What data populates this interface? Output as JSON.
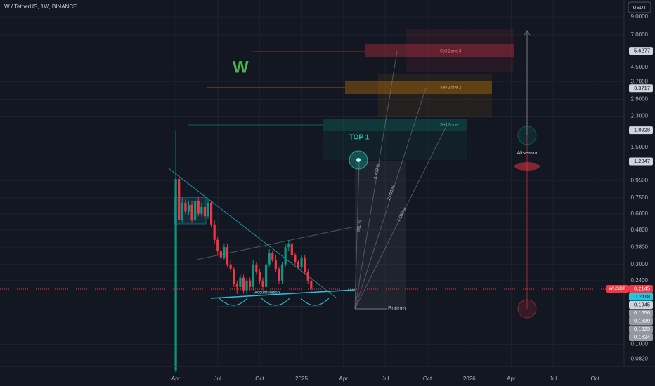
{
  "chart_data": {
    "type": "candlestick",
    "title": "W / TetherUS, 1W, BINANCE",
    "currency": "USDT",
    "log_scale": true,
    "up_color": "#089981",
    "down_color": "#f23645",
    "x": [
      0,
      1,
      2,
      3,
      4,
      5,
      6,
      7,
      8,
      9,
      10,
      11,
      12,
      13,
      14,
      15,
      16,
      17,
      18,
      19,
      20,
      21,
      22,
      23,
      24,
      25,
      26,
      27,
      28,
      29,
      30,
      31,
      32,
      33,
      34,
      35,
      36,
      37,
      38,
      39,
      40,
      41,
      42
    ],
    "open": [
      0.07,
      0.97,
      0.55,
      0.7,
      0.62,
      0.68,
      0.55,
      0.72,
      0.6,
      0.66,
      0.58,
      0.7,
      0.52,
      0.42,
      0.36,
      0.33,
      0.38,
      0.3,
      0.28,
      0.23,
      0.22,
      0.25,
      0.21,
      0.24,
      0.22,
      0.3,
      0.27,
      0.24,
      0.22,
      0.3,
      0.35,
      0.32,
      0.28,
      0.24,
      0.3,
      0.38,
      0.4,
      0.34,
      0.31,
      0.29,
      0.33,
      0.27,
      0.24
    ],
    "high": [
      1.87,
      1.0,
      0.75,
      0.74,
      0.72,
      0.72,
      0.76,
      0.76,
      0.7,
      0.7,
      0.74,
      0.72,
      0.55,
      0.44,
      0.38,
      0.4,
      0.4,
      0.32,
      0.29,
      0.24,
      0.26,
      0.26,
      0.25,
      0.25,
      0.32,
      0.31,
      0.28,
      0.25,
      0.31,
      0.37,
      0.36,
      0.34,
      0.29,
      0.31,
      0.4,
      0.42,
      0.41,
      0.35,
      0.32,
      0.34,
      0.34,
      0.28,
      0.25
    ],
    "low": [
      0.068,
      0.52,
      0.53,
      0.6,
      0.59,
      0.53,
      0.53,
      0.58,
      0.58,
      0.56,
      0.56,
      0.5,
      0.4,
      0.34,
      0.31,
      0.32,
      0.29,
      0.27,
      0.22,
      0.2,
      0.21,
      0.2,
      0.2,
      0.21,
      0.21,
      0.26,
      0.23,
      0.21,
      0.21,
      0.29,
      0.31,
      0.27,
      0.23,
      0.23,
      0.29,
      0.36,
      0.33,
      0.3,
      0.28,
      0.28,
      0.26,
      0.23,
      0.205
    ],
    "close": [
      0.97,
      0.55,
      0.7,
      0.62,
      0.68,
      0.55,
      0.72,
      0.6,
      0.66,
      0.58,
      0.7,
      0.52,
      0.42,
      0.36,
      0.33,
      0.38,
      0.3,
      0.28,
      0.23,
      0.22,
      0.25,
      0.21,
      0.24,
      0.22,
      0.3,
      0.27,
      0.24,
      0.22,
      0.3,
      0.35,
      0.32,
      0.28,
      0.24,
      0.3,
      0.38,
      0.4,
      0.34,
      0.31,
      0.29,
      0.33,
      0.27,
      0.24,
      0.2145
    ],
    "xlim": [
      -54.5,
      139
    ],
    "xticks": [
      {
        "value": 0,
        "label": "Apr"
      },
      {
        "value": 13,
        "label": "Jul"
      },
      {
        "value": 26,
        "label": "Oct"
      },
      {
        "value": 39,
        "label": "2025"
      },
      {
        "value": 52,
        "label": "Apr"
      },
      {
        "value": 65,
        "label": "Jul"
      },
      {
        "value": 78,
        "label": "Oct"
      },
      {
        "value": 91,
        "label": "2026"
      },
      {
        "value": 104,
        "label": "Apr"
      },
      {
        "value": 117,
        "label": "Jul"
      },
      {
        "value": 130,
        "label": "Oct"
      }
    ],
    "ylim": [
      0.0739,
      11.34
    ],
    "yticks": [
      {
        "value": 9,
        "label": "9.0000"
      },
      {
        "value": 7,
        "label": "7.0000"
      },
      {
        "value": 4.5,
        "label": "4.5000"
      },
      {
        "value": 3.7,
        "label": "3.7000"
      },
      {
        "value": 2.9,
        "label": "2.9000"
      },
      {
        "value": 2.3,
        "label": "2.3000"
      },
      {
        "value": 1.5,
        "label": "1.5000"
      },
      {
        "value": 0.95,
        "label": "0.9500"
      },
      {
        "value": 0.75,
        "label": "0.7500"
      },
      {
        "value": 0.6,
        "label": "0.6000"
      },
      {
        "value": 0.48,
        "label": "0.4800"
      },
      {
        "value": 0.38,
        "label": "0.3800"
      },
      {
        "value": 0.3,
        "label": "0.3000"
      },
      {
        "value": 0.24,
        "label": "0.2400"
      },
      {
        "value": 0.1,
        "label": "0.1000"
      },
      {
        "value": 0.082,
        "label": "0.0820"
      }
    ],
    "price_labels": [
      {
        "value": 5.6277,
        "label": "5.6277",
        "color": "#d1d4dc"
      },
      {
        "value": 3.3717,
        "label": "3.3717",
        "color": "#d1d4dc"
      },
      {
        "value": 1.8928,
        "label": "1.8928",
        "color": "#d1d4dc"
      },
      {
        "value": 1.2347,
        "label": "1.2347",
        "color": "#d1d4dc"
      },
      {
        "value": 0.2145,
        "label": "0.2145",
        "color": "#f23645"
      },
      {
        "value": 0.2118,
        "label": "0.2118",
        "color": "#22c6e0"
      },
      {
        "value": 0.1945,
        "label": "0.1945",
        "color": "#d1d4dc"
      },
      {
        "value": 0.1656,
        "label": "0.1656",
        "color": "#9598a1"
      },
      {
        "value": 0.163,
        "label": "0.1630",
        "color": "#9598a1"
      },
      {
        "value": 0.1625,
        "label": "0.1625",
        "color": "#9598a1"
      },
      {
        "value": 0.1624,
        "label": "0.1624",
        "color": "#9598a1"
      }
    ],
    "symbol_tag": "WUSDT",
    "annotations": {
      "logo": "W",
      "top": "TOP 1",
      "zone3": "Sell Zone 3",
      "zone2": "Sell Zone 2",
      "zone1": "Sell Zone 1",
      "altseason": "Altseason",
      "bottom": "Bottom",
      "accumulation": "Accumulation",
      "p660": "660 %",
      "p3400": "3 400 %",
      "p2000": "2 000 %",
      "p1060": "1 060 %"
    }
  }
}
